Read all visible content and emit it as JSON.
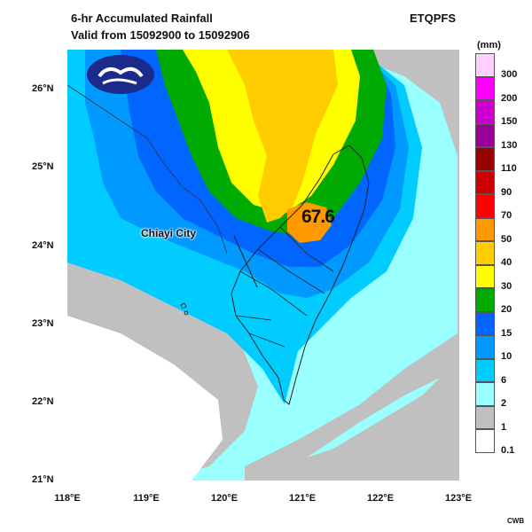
{
  "header": {
    "title": "6-hr Accumulated Rainfall",
    "subtitle": "Valid from 15092900 to 15092906",
    "model": "ETQPFS"
  },
  "legend": {
    "unit": "(mm)",
    "levels": [
      {
        "label": "300",
        "color": "#ffd0ff"
      },
      {
        "label": "200",
        "color": "#ff00ff"
      },
      {
        "label": "150",
        "color": "#cc00cc"
      },
      {
        "label": "130",
        "color": "#990099"
      },
      {
        "label": "110",
        "color": "#990000"
      },
      {
        "label": "90",
        "color": "#cc0000"
      },
      {
        "label": "70",
        "color": "#ff0000"
      },
      {
        "label": "50",
        "color": "#ff9900"
      },
      {
        "label": "40",
        "color": "#ffcc00"
      },
      {
        "label": "30",
        "color": "#ffff00"
      },
      {
        "label": "20",
        "color": "#00aa00"
      },
      {
        "label": "15",
        "color": "#0066ff"
      },
      {
        "label": "10",
        "color": "#0099ff"
      },
      {
        "label": "6",
        "color": "#00ccff"
      },
      {
        "label": "2",
        "color": "#99ffff"
      },
      {
        "label": "1",
        "color": "#c0c0c0"
      },
      {
        "label": "0.1",
        "color": "#ffffff"
      }
    ]
  },
  "axes": {
    "lat": [
      "26°N",
      "25°N",
      "24°N",
      "23°N",
      "22°N",
      "21°N"
    ],
    "lon": [
      "118°E",
      "119°E",
      "120°E",
      "121°E",
      "122°E",
      "123°E"
    ]
  },
  "map": {
    "max_value": "67.6",
    "city_label": "Chiayi City",
    "logo_icon": "cwb-cloud-logo-icon"
  },
  "footer": {
    "credit": "CWB"
  }
}
